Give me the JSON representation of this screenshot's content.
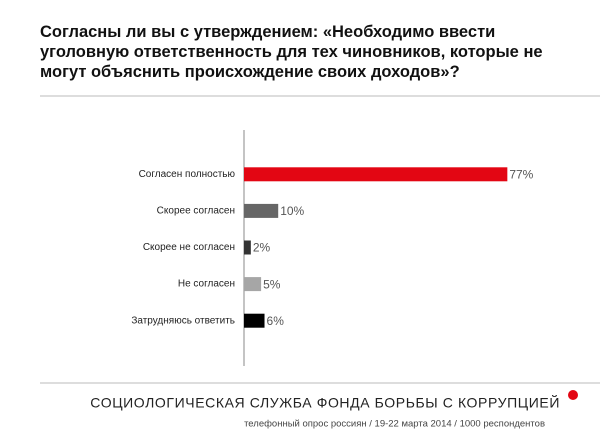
{
  "chart_data": {
    "type": "hbar",
    "title": "Согласны ли вы с утверждением: «Необходимо ввести уголовную ответственность для тех чиновников, которые не могут объяснить происхождение своих доходов»?",
    "categories": [
      "Согласен полностью",
      "Скорее согласен",
      "Скорее не согласен",
      "Не согласен",
      "Затрудняюсь ответить"
    ],
    "values": [
      77,
      10,
      2,
      5,
      6
    ],
    "value_labels": [
      "77%",
      "10%",
      "2%",
      "5%",
      "6%"
    ],
    "colors": [
      "#e30613",
      "#666666",
      "#333333",
      "#a6a6a6",
      "#000000"
    ],
    "xlim": [
      0,
      100
    ],
    "footer": "СОЦИОЛОГИЧЕСКАЯ СЛУЖБА ФОНДА БОРЬБЫ С КОРРУПЦИЕЙ",
    "source": "телефонный опрос россиян / 19-22 марта 2014 / 1000 респондентов"
  }
}
